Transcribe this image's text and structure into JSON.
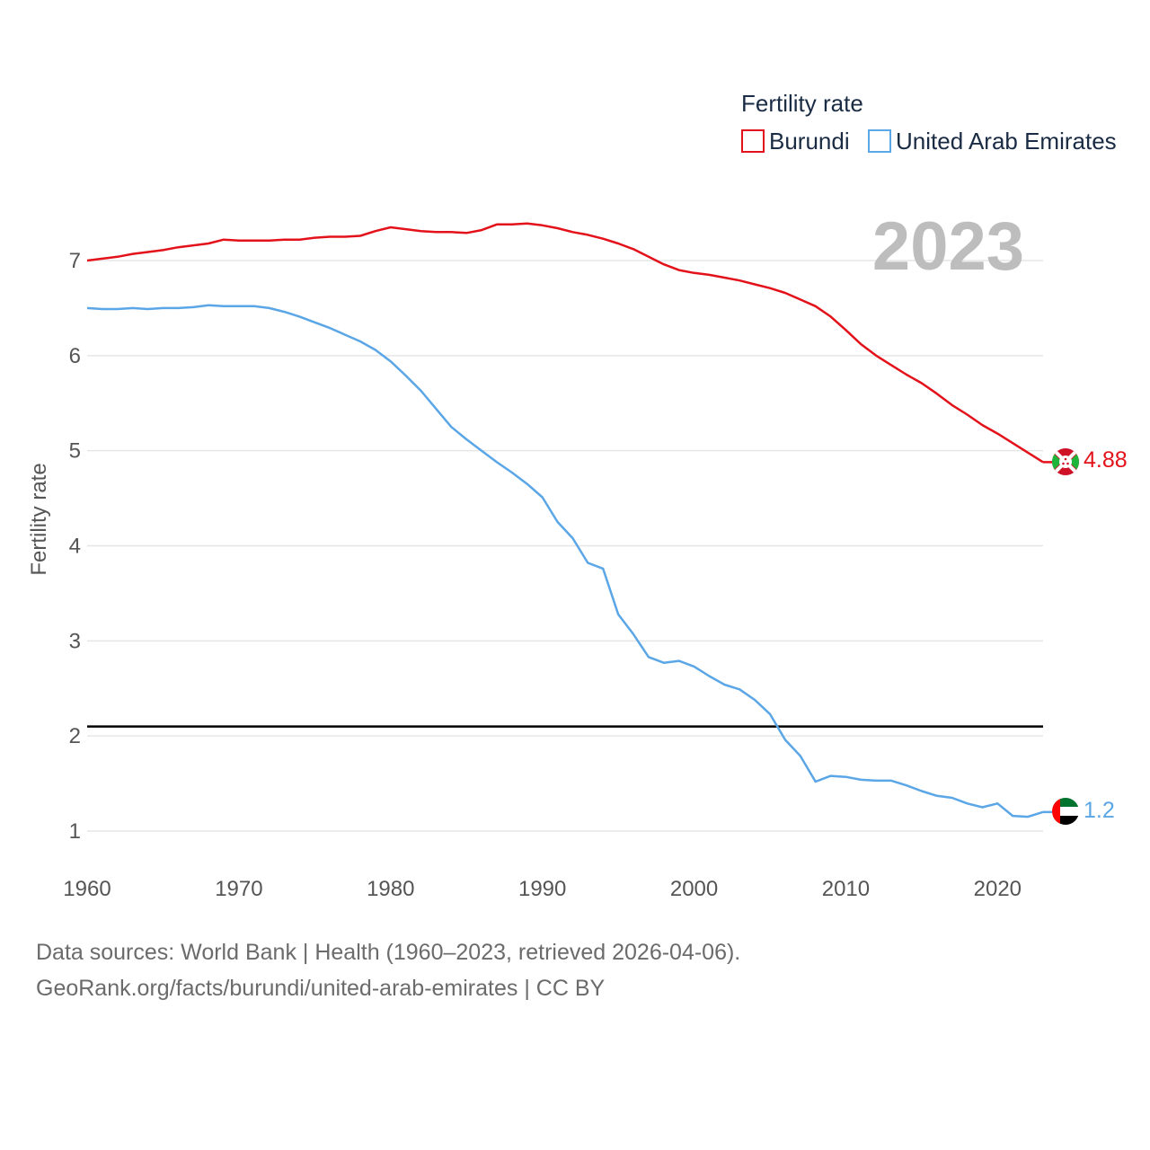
{
  "chart_data": {
    "type": "line",
    "title": "",
    "year_label": "2023",
    "xlabel": "",
    "ylabel": "Fertility rate",
    "xlim": [
      1960,
      2023
    ],
    "ylim": [
      0.6,
      7.6
    ],
    "x_ticks": [
      "1960",
      "1970",
      "1980",
      "1990",
      "2000",
      "2010",
      "2020"
    ],
    "y_ticks": [
      "1",
      "2",
      "3",
      "4",
      "5",
      "6",
      "7"
    ],
    "grid": true,
    "reference_line": 2.1,
    "legend": {
      "title": "Fertility rate",
      "position": "top-right",
      "entries": [
        "Burundi",
        "United Arab Emirates"
      ]
    },
    "x": [
      1960,
      1961,
      1962,
      1963,
      1964,
      1965,
      1966,
      1967,
      1968,
      1969,
      1970,
      1971,
      1972,
      1973,
      1974,
      1975,
      1976,
      1977,
      1978,
      1979,
      1980,
      1981,
      1982,
      1983,
      1984,
      1985,
      1986,
      1987,
      1988,
      1989,
      1990,
      1991,
      1992,
      1993,
      1994,
      1995,
      1996,
      1997,
      1998,
      1999,
      2000,
      2001,
      2002,
      2003,
      2004,
      2005,
      2006,
      2007,
      2008,
      2009,
      2010,
      2011,
      2012,
      2013,
      2014,
      2015,
      2016,
      2017,
      2018,
      2019,
      2020,
      2021,
      2022,
      2023
    ],
    "series": [
      {
        "name": "Burundi",
        "color": "#e3121a",
        "end_label": "4.88",
        "flag": "burundi-flag-icon",
        "values": [
          7.0,
          7.02,
          7.04,
          7.07,
          7.09,
          7.11,
          7.14,
          7.16,
          7.18,
          7.22,
          7.21,
          7.21,
          7.21,
          7.22,
          7.22,
          7.24,
          7.25,
          7.25,
          7.26,
          7.31,
          7.35,
          7.33,
          7.31,
          7.3,
          7.3,
          7.29,
          7.32,
          7.38,
          7.38,
          7.39,
          7.37,
          7.34,
          7.3,
          7.27,
          7.23,
          7.18,
          7.12,
          7.04,
          6.96,
          6.9,
          6.87,
          6.85,
          6.82,
          6.79,
          6.75,
          6.71,
          6.66,
          6.59,
          6.52,
          6.41,
          6.27,
          6.12,
          6.0,
          5.9,
          5.8,
          5.71,
          5.6,
          5.48,
          5.38,
          5.27,
          5.18,
          5.08,
          4.98,
          4.88
        ]
      },
      {
        "name": "United Arab Emirates",
        "color": "#5aa6e6",
        "end_label": "1.2",
        "flag": "uae-flag-icon",
        "values": [
          6.5,
          6.49,
          6.49,
          6.5,
          6.49,
          6.5,
          6.5,
          6.51,
          6.53,
          6.52,
          6.52,
          6.52,
          6.5,
          6.46,
          6.41,
          6.35,
          6.29,
          6.22,
          6.15,
          6.06,
          5.94,
          5.79,
          5.63,
          5.44,
          5.25,
          5.12,
          5.0,
          4.88,
          4.77,
          4.65,
          4.51,
          4.25,
          4.08,
          3.82,
          3.76,
          3.28,
          3.07,
          2.83,
          2.77,
          2.79,
          2.73,
          2.63,
          2.54,
          2.49,
          2.38,
          2.23,
          1.96,
          1.79,
          1.52,
          1.58,
          1.57,
          1.54,
          1.53,
          1.53,
          1.48,
          1.42,
          1.37,
          1.35,
          1.29,
          1.25,
          1.29,
          1.16,
          1.15,
          1.2
        ]
      }
    ]
  },
  "footer": {
    "sources": "Data sources: World Bank | Health (1960–2023, retrieved 2026-04-06).",
    "attribution": "GeoRank.org/facts/burundi/united-arab-emirates | CC BY"
  }
}
